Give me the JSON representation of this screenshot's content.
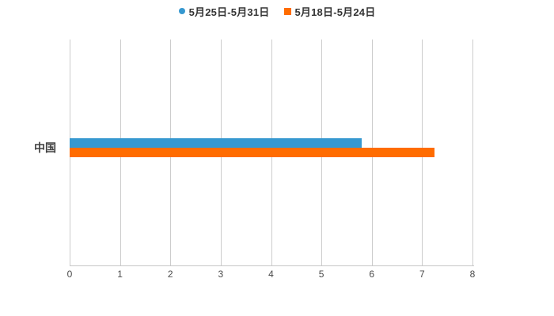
{
  "legend": {
    "items": [
      {
        "label": "5月25日-5月31日",
        "color": "#3698d0",
        "marker_shape": "circle"
      },
      {
        "label": "5月18日-5月24日",
        "color": "#ff6c00",
        "marker_shape": "square"
      }
    ]
  },
  "chart_data": {
    "type": "bar",
    "orientation": "horizontal",
    "title": "",
    "xlabel": "",
    "ylabel": "",
    "categories": [
      "中国"
    ],
    "series": [
      {
        "name": "5月25日-5月31日",
        "values": [
          5.8
        ],
        "color": "#3698d0"
      },
      {
        "name": "5月18日-5月24日",
        "values": [
          7.25
        ],
        "color": "#ff6c00"
      }
    ],
    "xlim": [
      0,
      8
    ],
    "xticks": [
      0,
      1,
      2,
      3,
      4,
      5,
      6,
      7,
      8
    ],
    "grid": true,
    "legend_position": "top"
  },
  "colors": {
    "background": "#ffffff",
    "gridline": "#cccccc",
    "axis_line": "#c6c6c6",
    "tick_text": "#4a4a4a",
    "category_text": "#404040",
    "legend_text": "#333333"
  }
}
